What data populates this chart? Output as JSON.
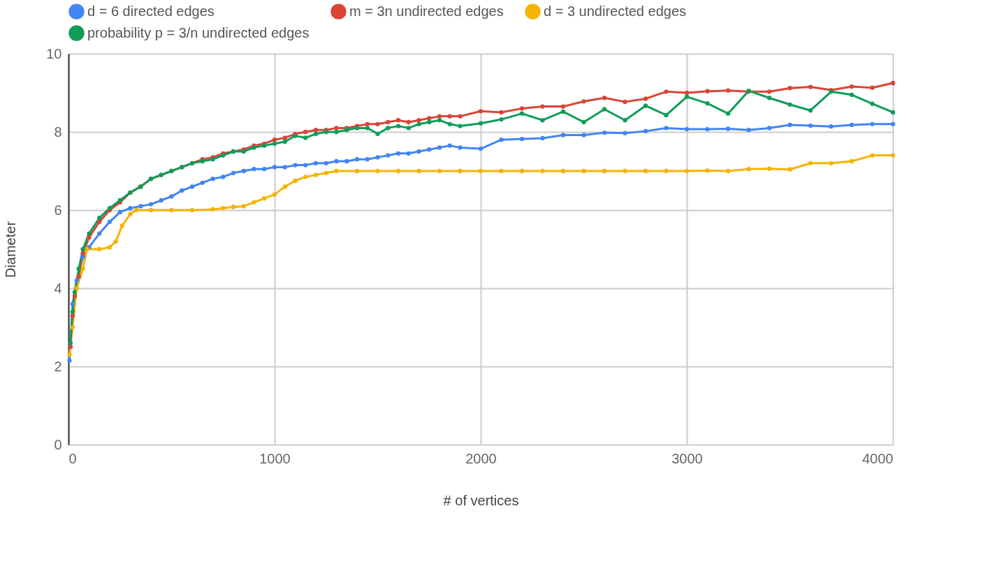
{
  "chart_data": {
    "type": "line",
    "xlabel": "# of vertices",
    "ylabel": "Diameter",
    "xlim": [
      0,
      4000
    ],
    "xticks": [
      0,
      1000,
      2000,
      3000,
      4000
    ],
    "ylim": [
      0,
      10
    ],
    "yticks": [
      0,
      2,
      4,
      6,
      8,
      10
    ],
    "grid": true,
    "legend": "top",
    "marker": "circle",
    "line_style": "solid",
    "series": [
      {
        "name": "d = 6 directed edges",
        "color": "#4285f4",
        "x": [
          5,
          20,
          40,
          70,
          100,
          150,
          200,
          250,
          300,
          350,
          400,
          450,
          500,
          550,
          600,
          650,
          700,
          750,
          800,
          850,
          900,
          950,
          1000,
          1050,
          1100,
          1150,
          1200,
          1250,
          1300,
          1350,
          1400,
          1450,
          1500,
          1550,
          1600,
          1650,
          1700,
          1750,
          1800,
          1850,
          1900,
          2000,
          2100,
          2200,
          2300,
          2400,
          2500,
          2600,
          2700,
          2800,
          2900,
          3000,
          3100,
          3200,
          3300,
          3400,
          3500,
          3600,
          3700,
          3800,
          3900,
          4000
        ],
        "values": [
          2.15,
          3.6,
          4.2,
          4.8,
          5.05,
          5.4,
          5.7,
          5.95,
          6.05,
          6.1,
          6.15,
          6.25,
          6.35,
          6.5,
          6.6,
          6.7,
          6.8,
          6.85,
          6.95,
          7.0,
          7.05,
          7.05,
          7.1,
          7.1,
          7.15,
          7.15,
          7.2,
          7.2,
          7.25,
          7.25,
          7.3,
          7.3,
          7.35,
          7.4,
          7.45,
          7.45,
          7.5,
          7.55,
          7.6,
          7.65,
          7.6,
          7.57,
          7.8,
          7.82,
          7.84,
          7.92,
          7.92,
          7.98,
          7.97,
          8.02,
          8.1,
          8.07,
          8.07,
          8.08,
          8.05,
          8.1,
          8.18,
          8.16,
          8.14,
          8.18,
          8.2,
          8.2
        ]
      },
      {
        "name": "m = 3n undirected edges",
        "color": "#db4437",
        "x": [
          10,
          20,
          30,
          50,
          70,
          100,
          150,
          200,
          250,
          300,
          350,
          400,
          450,
          500,
          550,
          600,
          650,
          700,
          750,
          800,
          850,
          900,
          950,
          1000,
          1050,
          1100,
          1150,
          1200,
          1250,
          1300,
          1350,
          1400,
          1450,
          1500,
          1550,
          1600,
          1650,
          1700,
          1750,
          1800,
          1850,
          1900,
          2000,
          2100,
          2200,
          2300,
          2400,
          2500,
          2600,
          2700,
          2800,
          2900,
          3000,
          3100,
          3200,
          3300,
          3400,
          3500,
          3600,
          3700,
          3800,
          3900,
          4000
        ],
        "values": [
          2.5,
          3.3,
          3.8,
          4.3,
          4.9,
          5.3,
          5.7,
          6.0,
          6.2,
          6.45,
          6.6,
          6.8,
          6.9,
          7.0,
          7.1,
          7.2,
          7.3,
          7.35,
          7.45,
          7.5,
          7.55,
          7.65,
          7.7,
          7.8,
          7.85,
          7.95,
          8.0,
          8.05,
          8.05,
          8.1,
          8.1,
          8.15,
          8.2,
          8.2,
          8.25,
          8.3,
          8.25,
          8.3,
          8.35,
          8.4,
          8.4,
          8.4,
          8.53,
          8.5,
          8.6,
          8.65,
          8.65,
          8.78,
          8.87,
          8.77,
          8.85,
          9.03,
          9.0,
          9.04,
          9.06,
          9.03,
          9.03,
          9.12,
          9.15,
          9.07,
          9.16,
          9.13,
          9.25
        ]
      },
      {
        "name": "d = 3 undirected edges",
        "color": "#f4b400",
        "x": [
          5,
          20,
          40,
          70,
          90,
          150,
          200,
          230,
          260,
          300,
          330,
          400,
          500,
          600,
          700,
          750,
          800,
          850,
          900,
          950,
          1000,
          1050,
          1100,
          1150,
          1200,
          1250,
          1300,
          1400,
          1500,
          1600,
          1700,
          1800,
          1900,
          2000,
          2100,
          2200,
          2300,
          2400,
          2500,
          2600,
          2700,
          2800,
          2900,
          3000,
          3100,
          3200,
          3300,
          3400,
          3500,
          3600,
          3700,
          3800,
          3900,
          4000
        ],
        "values": [
          2.3,
          3.0,
          4.0,
          4.5,
          5.0,
          5.0,
          5.05,
          5.2,
          5.6,
          5.9,
          6.0,
          6.0,
          6.0,
          6.0,
          6.02,
          6.05,
          6.08,
          6.1,
          6.2,
          6.3,
          6.4,
          6.6,
          6.75,
          6.85,
          6.9,
          6.95,
          7.0,
          7.0,
          7.0,
          7.0,
          7.0,
          7.0,
          7.0,
          7.0,
          7.0,
          7.0,
          7.0,
          7.0,
          7.0,
          7.0,
          7.0,
          7.0,
          7.0,
          7.0,
          7.01,
          7.0,
          7.05,
          7.06,
          7.04,
          7.2,
          7.2,
          7.25,
          7.4,
          7.4
        ]
      },
      {
        "name": "probability p = 3/n undirected edges",
        "color": "#0f9d58",
        "x": [
          10,
          20,
          30,
          50,
          70,
          100,
          150,
          200,
          250,
          300,
          350,
          400,
          450,
          500,
          550,
          600,
          650,
          700,
          750,
          800,
          850,
          900,
          950,
          1000,
          1050,
          1100,
          1150,
          1200,
          1250,
          1300,
          1350,
          1400,
          1450,
          1500,
          1550,
          1600,
          1650,
          1700,
          1750,
          1800,
          1850,
          1900,
          2000,
          2100,
          2200,
          2300,
          2400,
          2500,
          2600,
          2700,
          2800,
          2900,
          3000,
          3100,
          3200,
          3300,
          3400,
          3500,
          3600,
          3700,
          3800,
          3900,
          4000
        ],
        "values": [
          2.6,
          3.4,
          3.9,
          4.5,
          5.0,
          5.4,
          5.8,
          6.05,
          6.25,
          6.45,
          6.6,
          6.8,
          6.9,
          7.0,
          7.1,
          7.2,
          7.25,
          7.3,
          7.4,
          7.5,
          7.5,
          7.6,
          7.65,
          7.7,
          7.75,
          7.9,
          7.85,
          7.95,
          8.0,
          8.0,
          8.05,
          8.1,
          8.1,
          7.95,
          8.1,
          8.15,
          8.1,
          8.2,
          8.25,
          8.3,
          8.2,
          8.15,
          8.22,
          8.32,
          8.47,
          8.3,
          8.52,
          8.25,
          8.58,
          8.3,
          8.67,
          8.43,
          8.9,
          8.73,
          8.47,
          9.05,
          8.87,
          8.7,
          8.55,
          9.03,
          8.95,
          8.72,
          8.5
        ]
      }
    ]
  }
}
